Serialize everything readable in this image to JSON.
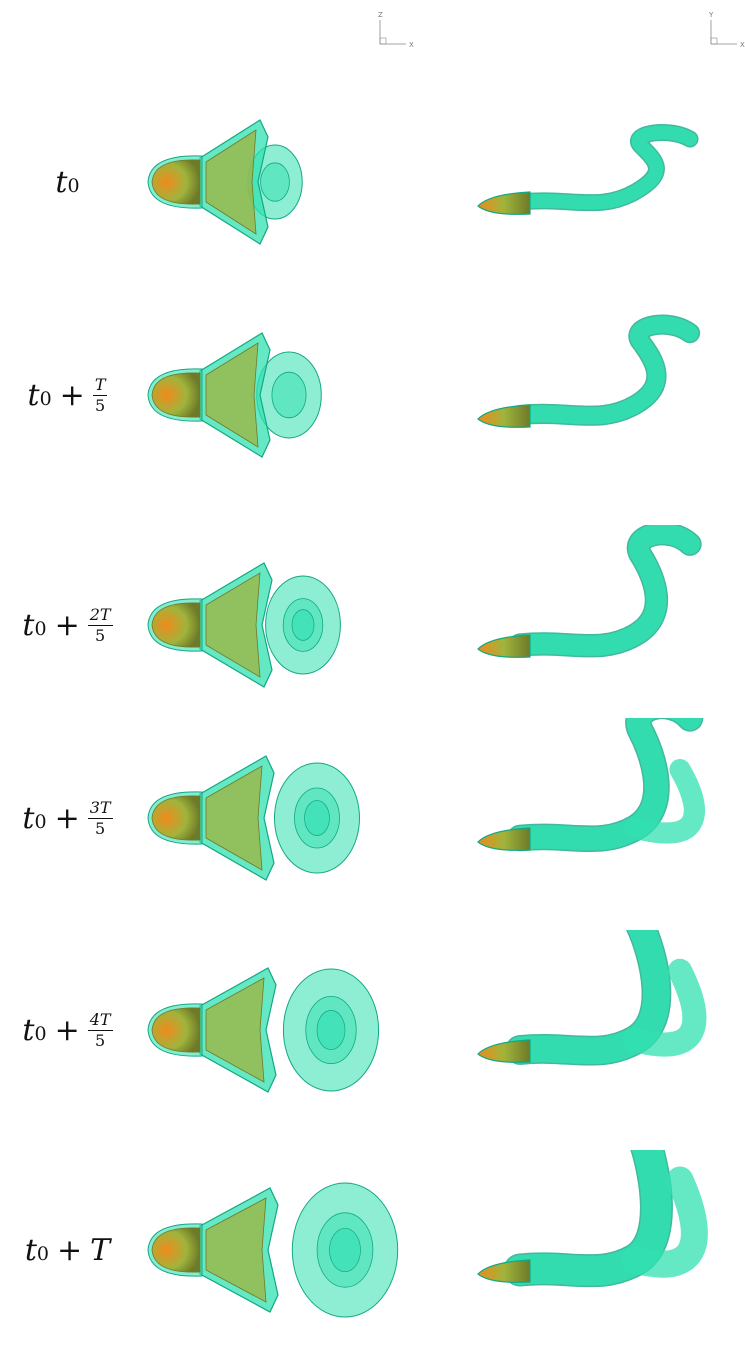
{
  "axes": {
    "top_view": {
      "vertical": "Z",
      "horizontal": "X"
    },
    "side_view": {
      "vertical": "Y",
      "horizontal": "X"
    }
  },
  "colors": {
    "vortex_surface": "#32e0b0",
    "vortex_edge": "#12a883",
    "body_surface": "#a0b43c",
    "body_tip": "#f08a1c",
    "body_dark": "#6e7a28"
  },
  "rows": [
    {
      "base": "t",
      "sub": "0",
      "op": "",
      "num": "",
      "den": "",
      "tail": "",
      "growth": 0.0
    },
    {
      "base": "t",
      "sub": "0",
      "op": "+",
      "num": "T",
      "den": "5",
      "tail": "",
      "growth": 0.2
    },
    {
      "base": "t",
      "sub": "0",
      "op": "+",
      "num": "2T",
      "den": "5",
      "tail": "",
      "growth": 0.4
    },
    {
      "base": "t",
      "sub": "0",
      "op": "+",
      "num": "3T",
      "den": "5",
      "tail": "",
      "growth": 0.6
    },
    {
      "base": "t",
      "sub": "0",
      "op": "+",
      "num": "4T",
      "den": "5",
      "tail": "",
      "growth": 0.8
    },
    {
      "base": "t",
      "sub": "0",
      "op": "+",
      "num": "",
      "den": "",
      "tail": "T",
      "growth": 1.0
    }
  ]
}
